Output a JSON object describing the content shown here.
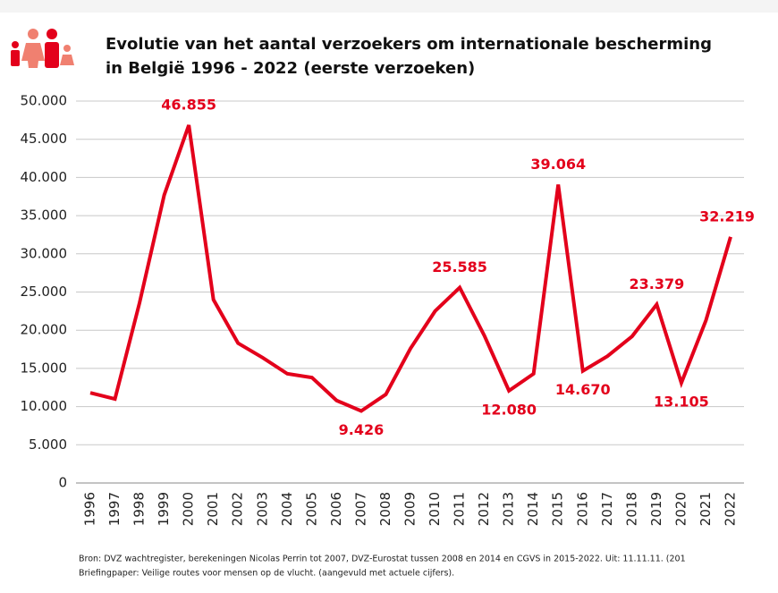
{
  "chart_data": {
    "type": "line",
    "title": [
      "Evolutie van het aantal verzoekers om internationale bescherming",
      "in België 1996 - 2022 (eerste verzoeken)"
    ],
    "categories": [
      "1996",
      "1997",
      "1998",
      "1999",
      "2000",
      "2001",
      "2002",
      "2003",
      "2004",
      "2005",
      "2006",
      "2007",
      "2008",
      "2009",
      "2010",
      "2011",
      "2012",
      "2013",
      "2014",
      "2015",
      "2016",
      "2017",
      "2018",
      "2019",
      "2020",
      "2021",
      "2022"
    ],
    "series": [
      {
        "color": "#e3001b",
        "values": [
          11800,
          11000,
          23600,
          37700,
          46855,
          24000,
          18300,
          16400,
          14300,
          13800,
          10800,
          9426,
          11600,
          17600,
          22500,
          25585,
          19300,
          12080,
          14300,
          39064,
          14670,
          16600,
          19200,
          23379,
          13105,
          21300,
          32219
        ],
        "value_labels": [
          null,
          null,
          null,
          null,
          "46.855",
          null,
          null,
          null,
          null,
          null,
          null,
          "9.426",
          null,
          null,
          null,
          "25.585",
          null,
          "12.080",
          null,
          "39.064",
          "14.670",
          null,
          null,
          "23.379",
          "13.105",
          null,
          "32.219"
        ]
      }
    ],
    "ylim": [
      0,
      50000
    ],
    "yticks": [
      0,
      {
        "value": 5000,
        "label": "5.000"
      },
      {
        "value": 10000,
        "label": "10.000"
      },
      {
        "value": 15000,
        "label": "15.000"
      },
      {
        "value": 20000,
        "label": "20.000"
      },
      {
        "value": 25000,
        "label": "25.000"
      },
      {
        "value": 30000,
        "label": "30.000"
      },
      {
        "value": 35000,
        "label": "35.000"
      },
      {
        "value": 40000,
        "label": "40.000"
      },
      {
        "value": 45000,
        "label": "45.000"
      },
      {
        "value": 50000,
        "label": "50.000"
      }
    ],
    "grid": true,
    "source": [
      "Bron: DVZ wachtregister, berekeningen Nicolas Perrin tot 2007, DVZ-Eurostat tussen 2008 en 2014 en CGVS in 2015-2022. Uit: 11.11.11. (201",
      "Briefingpaper: Veilige routes voor mensen op de vlucht.  (aangevuld met actuele cijfers)."
    ]
  }
}
